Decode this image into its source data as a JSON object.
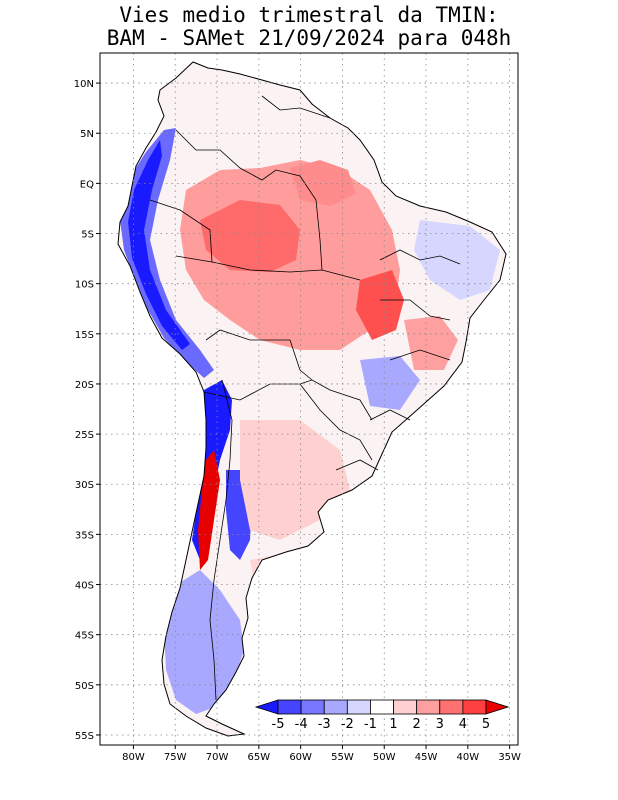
{
  "title": {
    "line1": "Vies medio trimestral da TMIN:",
    "line2": "BAM - SAMet 21/09/2024  para 048h"
  },
  "map": {
    "lon_range": [
      -84,
      -34
    ],
    "lat_range": [
      -56,
      13
    ],
    "lat_ticks": [
      "10N",
      "5N",
      "EQ",
      "5S",
      "10S",
      "15S",
      "20S",
      "25S",
      "30S",
      "35S",
      "40S",
      "45S",
      "50S",
      "55S"
    ],
    "lon_ticks": [
      "80W",
      "75W",
      "70W",
      "65W",
      "60W",
      "55W",
      "50W",
      "45W",
      "40W",
      "35W"
    ],
    "grid": "dotted"
  },
  "colorbar": {
    "labels": [
      "-5",
      "-4",
      "-3",
      "-2",
      "-1",
      "1",
      "2",
      "3",
      "4",
      "5"
    ],
    "colors": [
      "#1a1aff",
      "#4545ff",
      "#7878ff",
      "#a8a8ff",
      "#d6d6ff",
      "#ffffff",
      "#ffd0d0",
      "#ffa0a0",
      "#ff7070",
      "#ff4040",
      "#e60000"
    ]
  }
}
